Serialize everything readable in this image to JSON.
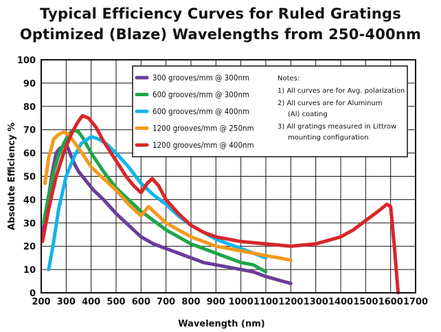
{
  "chart_data": {
    "type": "line",
    "title": "Typical Efficiency Curves  for Ruled Gratings",
    "subtitle": "Optimized (Blaze) Wavelengths from 250-400nm",
    "xlabel": "Wavelength (nm)",
    "ylabel": "Absolute Efficiency %",
    "xlim": [
      200,
      1700
    ],
    "ylim": [
      0,
      100
    ],
    "xticks": [
      200,
      300,
      400,
      500,
      600,
      700,
      800,
      900,
      1000,
      1100,
      1200,
      1300,
      1400,
      1500,
      1600,
      1700
    ],
    "yticks": [
      0,
      10,
      20,
      30,
      40,
      50,
      60,
      70,
      80,
      90,
      100
    ],
    "grid": true,
    "legend_position": "top-right",
    "series": [
      {
        "name": "300 grooves/mm  @ 300nm",
        "color": "#6a3d9a",
        "x": [
          205,
          225,
          245,
          260,
          275,
          290,
          300,
          315,
          330,
          350,
          380,
          410,
          450,
          500,
          550,
          600,
          650,
          700,
          750,
          800,
          850,
          900,
          950,
          1000,
          1050,
          1100,
          1150,
          1200
        ],
        "y": [
          25,
          38,
          52,
          60,
          62,
          63,
          64,
          60,
          56,
          52,
          48,
          44,
          40,
          34,
          29,
          24,
          21,
          19,
          17,
          15,
          13,
          12,
          11,
          10,
          9,
          7,
          5.5,
          4
        ]
      },
      {
        "name": "600 grooves/mm  @ 300nm",
        "color": "#1ea64a",
        "x": [
          210,
          230,
          250,
          270,
          290,
          310,
          330,
          350,
          370,
          400,
          450,
          500,
          550,
          600,
          650,
          700,
          750,
          800,
          850,
          900,
          950,
          1000,
          1050,
          1100
        ],
        "y": [
          30,
          42,
          52,
          59,
          64,
          68,
          70,
          69,
          66,
          60,
          52,
          45,
          40,
          35,
          31,
          27,
          24,
          21,
          19,
          17,
          15,
          13,
          12,
          9
        ]
      },
      {
        "name": "600 grooves/mm  @ 400nm",
        "color": "#12b4ec",
        "x": [
          230,
          250,
          270,
          300,
          330,
          360,
          400,
          430,
          460,
          500,
          550,
          600,
          650,
          700,
          750,
          800,
          850,
          900,
          950,
          1000,
          1050,
          1100
        ],
        "y": [
          10,
          22,
          36,
          50,
          58,
          64,
          67,
          66,
          64,
          60,
          54,
          47,
          42,
          38,
          33,
          29,
          26,
          23,
          21,
          19,
          17,
          15
        ]
      },
      {
        "name": "1200 grooves/mm  @ 250nm",
        "color": "#f59a1e",
        "x": [
          215,
          230,
          250,
          270,
          290,
          310,
          330,
          350,
          370,
          400,
          450,
          500,
          550,
          600,
          630,
          650,
          700,
          750,
          800,
          850,
          900,
          950,
          1000,
          1050,
          1100,
          1150,
          1200
        ],
        "y": [
          47,
          58,
          66,
          68,
          69,
          68,
          65,
          62,
          59,
          54,
          49,
          44,
          38,
          33,
          37,
          35,
          30,
          27,
          24,
          22,
          20,
          19,
          18,
          17,
          16,
          15,
          14
        ]
      },
      {
        "name": "1200 grooves/mm  @ 400nm",
        "color": "#d8262b",
        "x": [
          205,
          230,
          260,
          290,
          320,
          345,
          365,
          390,
          420,
          450,
          480,
          510,
          540,
          570,
          600,
          625,
          645,
          670,
          700,
          750,
          800,
          850,
          900,
          1000,
          1100,
          1200,
          1300,
          1400,
          1450,
          1500,
          1550,
          1585,
          1600,
          1615,
          1630
        ],
        "y": [
          22,
          36,
          50,
          60,
          68,
          73,
          76,
          75,
          71,
          65,
          60,
          55,
          50,
          46,
          43,
          47,
          49,
          46,
          40,
          34,
          29,
          26,
          24,
          22,
          21,
          20,
          21,
          24,
          27,
          31,
          35,
          38,
          37,
          20,
          0
        ]
      }
    ],
    "notes": {
      "heading": "Notes:",
      "lines": [
        "1) All curves are for Avg. polarization",
        "2) All curves are for Aluminum",
        "(Al) coating",
        "3) All gratings measured in Littrow",
        "mounting configuration"
      ]
    }
  }
}
